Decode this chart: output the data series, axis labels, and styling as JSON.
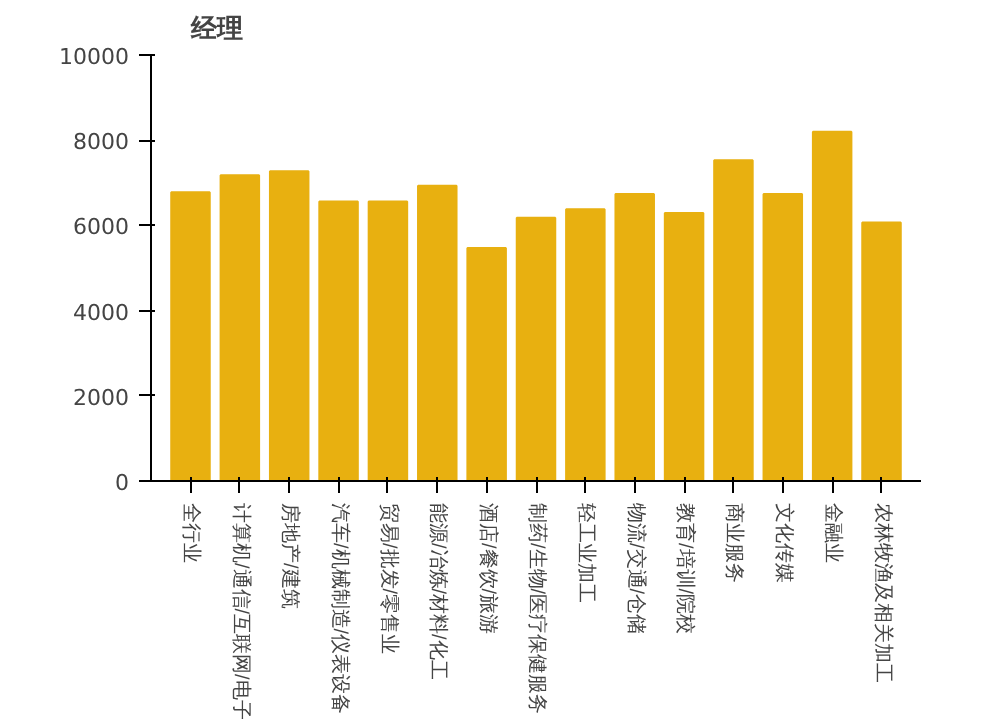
{
  "chart_data": {
    "type": "bar",
    "title": "经理",
    "categories": [
      "全行业",
      "计算机/通信/互联网/电子",
      "房地产/建筑",
      "汽车/机械制造/仪表设备",
      "贸易/批发/零售业",
      "能源/冶炼/材料/化工",
      "酒店/餐饮/旅游",
      "制药/生物/医疗保健服务",
      "轻工业加工",
      "物流/交通/仓储",
      "教育/培训/院校",
      "商业服务",
      "文化传媒",
      "金融业",
      "农林牧渔及相关加工"
    ],
    "values": [
      6780,
      7180,
      7270,
      6560,
      6560,
      6930,
      5470,
      6180,
      6380,
      6740,
      6290,
      7530,
      6740,
      8200,
      6070
    ],
    "color": "#e8b010",
    "ylim": [
      0,
      10000
    ],
    "yticks": [
      0,
      2000,
      4000,
      6000,
      8000,
      10000
    ],
    "grid": false
  }
}
